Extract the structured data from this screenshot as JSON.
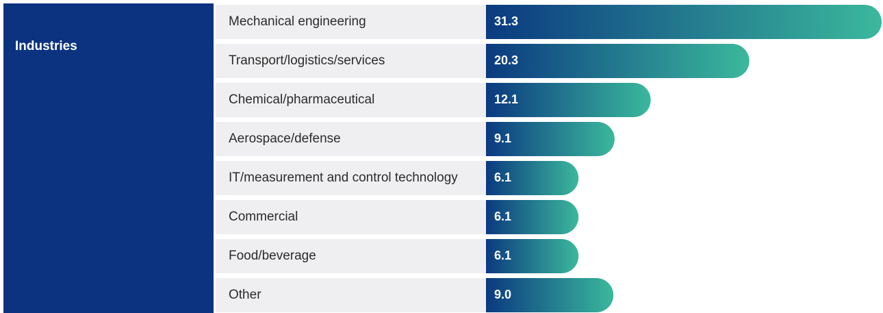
{
  "chart_data": {
    "type": "bar",
    "orientation": "horizontal",
    "group_label": "Industries",
    "categories": [
      "Mechanical engineering",
      "Transport/logistics/services",
      "Chemical/pharmaceutical",
      "Aerospace/defense",
      "IT/measurement and control technology",
      "Commercial",
      "Food/beverage",
      "Other"
    ],
    "values": [
      31.3,
      20.3,
      12.1,
      9.1,
      6.1,
      6.1,
      6.1,
      9.0
    ],
    "value_labels": [
      "31.3",
      "20.3",
      "12.1",
      "9.1",
      "6.1",
      "6.1",
      "6.1",
      "9.0"
    ],
    "color_start": "#0b3a80",
    "color_end": "#3bb89c"
  }
}
